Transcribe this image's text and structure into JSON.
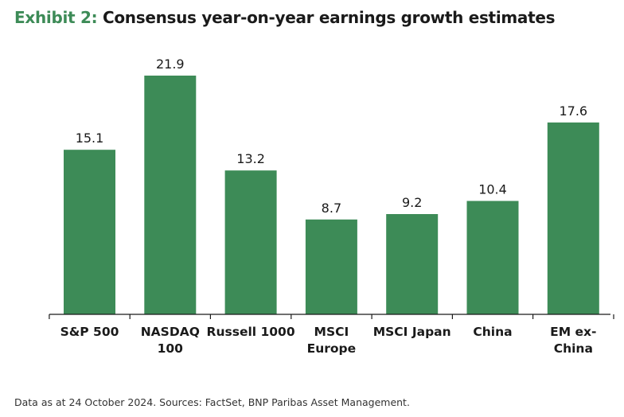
{
  "header": {
    "exhibit_prefix": "Exhibit 2:",
    "title": "Consensus year-on-year earnings growth estimates"
  },
  "footnote": "Data as at 24 October 2024. Sources: FactSet, BNP Paribas Asset Management.",
  "colors": {
    "bar": "#3d8b57",
    "accent": "#3d8b57",
    "axis": "#1a1a1a"
  },
  "chart_data": {
    "type": "bar",
    "title": "Consensus year-on-year earnings growth estimates",
    "categories": [
      [
        "S&P 500"
      ],
      [
        "NASDAQ",
        "100"
      ],
      [
        "Russell 1000"
      ],
      [
        "MSCI",
        "Europe"
      ],
      [
        "MSCI Japan"
      ],
      [
        "China"
      ],
      [
        "EM ex-",
        "China"
      ]
    ],
    "values": [
      15.1,
      21.9,
      13.2,
      8.7,
      9.2,
      10.4,
      17.6
    ],
    "value_labels": [
      "15.1",
      "21.9",
      "13.2",
      "8.7",
      "9.2",
      "10.4",
      "17.6"
    ],
    "ylim": [
      0,
      21.9
    ],
    "xlabel": "",
    "ylabel": "",
    "grid": false,
    "legend": "none"
  }
}
